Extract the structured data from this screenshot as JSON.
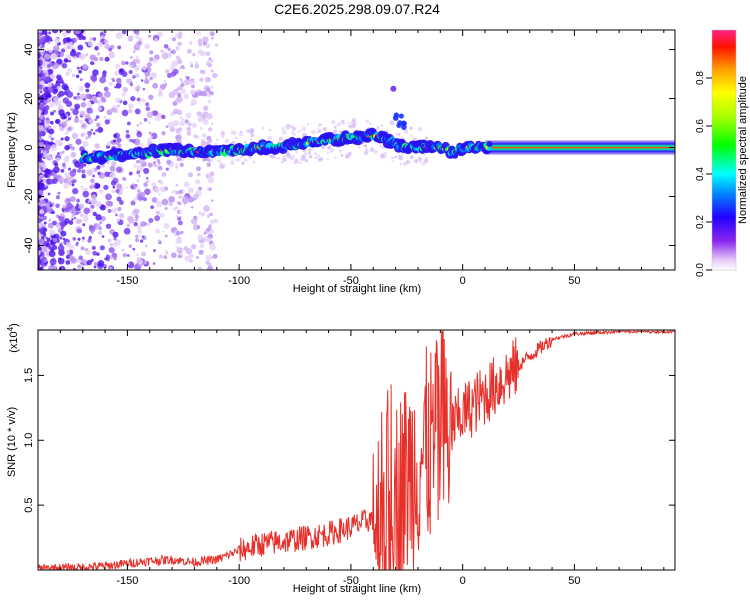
{
  "title": "C2E6.2025.298.09.07.R24",
  "colors": {
    "background": "#ffffff",
    "axis": "#000000",
    "snr_line": "#e8302a",
    "ridge_core": "#e8302a"
  },
  "chart_data": [
    {
      "type": "heatmap",
      "name": "spectrogram",
      "xlabel": "Height of straight line (km)",
      "ylabel": "Frequency (Hz)",
      "xlim": [
        -190,
        95
      ],
      "ylim": [
        -50,
        48
      ],
      "xticks": [
        -150,
        -100,
        -50,
        0,
        50
      ],
      "xtick_labels": [
        "-150",
        "-100",
        "-50",
        "0",
        "50"
      ],
      "yticks": [
        -40,
        -20,
        0,
        20,
        40
      ],
      "ytick_labels": [
        "-40",
        "-20",
        "0",
        "20",
        "40"
      ],
      "ridge": {
        "x": [
          -168,
          -150,
          -130,
          -110,
          -90,
          -75,
          -62,
          -50,
          -40,
          -33,
          -28,
          -20,
          -10,
          -3,
          0,
          10,
          30,
          60,
          93
        ],
        "y": [
          -4,
          -3,
          -1,
          -2,
          0,
          1,
          3,
          4,
          5,
          3,
          1,
          0,
          0,
          -2,
          0,
          0,
          0,
          0,
          0
        ]
      },
      "colorbar": {
        "label": "Normalized spectral amplitude",
        "range": [
          0.0,
          1.0
        ],
        "ticks": [
          0.0,
          0.2,
          0.4,
          0.6,
          0.8
        ],
        "tick_labels": [
          "0.0",
          "0.2",
          "0.4",
          "0.6",
          "0.8"
        ]
      }
    },
    {
      "type": "line",
      "name": "snr",
      "xlabel": "Height of straight line (km)",
      "ylabel": "SNR (10 * v/v)",
      "scale_label": "(x10",
      "scale_exp": "4",
      "xlim": [
        -190,
        95
      ],
      "ylim": [
        0,
        1.85
      ],
      "xticks": [
        -150,
        -100,
        -50,
        0,
        50
      ],
      "xtick_labels": [
        "-150",
        "-100",
        "-50",
        "0",
        "50"
      ],
      "yticks": [
        0.5,
        1.0,
        1.5
      ],
      "ytick_labels": [
        "0.5",
        "1.0",
        "1.5"
      ],
      "series": [
        {
          "name": "SNR",
          "x": [
            -190,
            -170,
            -160,
            -150,
            -140,
            -130,
            -120,
            -110,
            -100,
            -90,
            -80,
            -70,
            -60,
            -50,
            -40,
            -35,
            -30,
            -25,
            -20,
            -15,
            -10,
            -5,
            0,
            10,
            20,
            30,
            40,
            50,
            60,
            70,
            80,
            93
          ],
          "y": [
            0.01,
            0.02,
            0.03,
            0.05,
            0.07,
            0.08,
            0.06,
            0.08,
            0.15,
            0.2,
            0.22,
            0.25,
            0.28,
            0.33,
            0.4,
            0.45,
            0.55,
            0.7,
            0.85,
            0.95,
            1.0,
            1.1,
            1.2,
            1.35,
            1.5,
            1.65,
            1.78,
            1.82,
            1.83,
            1.84,
            1.84,
            1.84
          ]
        }
      ]
    }
  ]
}
